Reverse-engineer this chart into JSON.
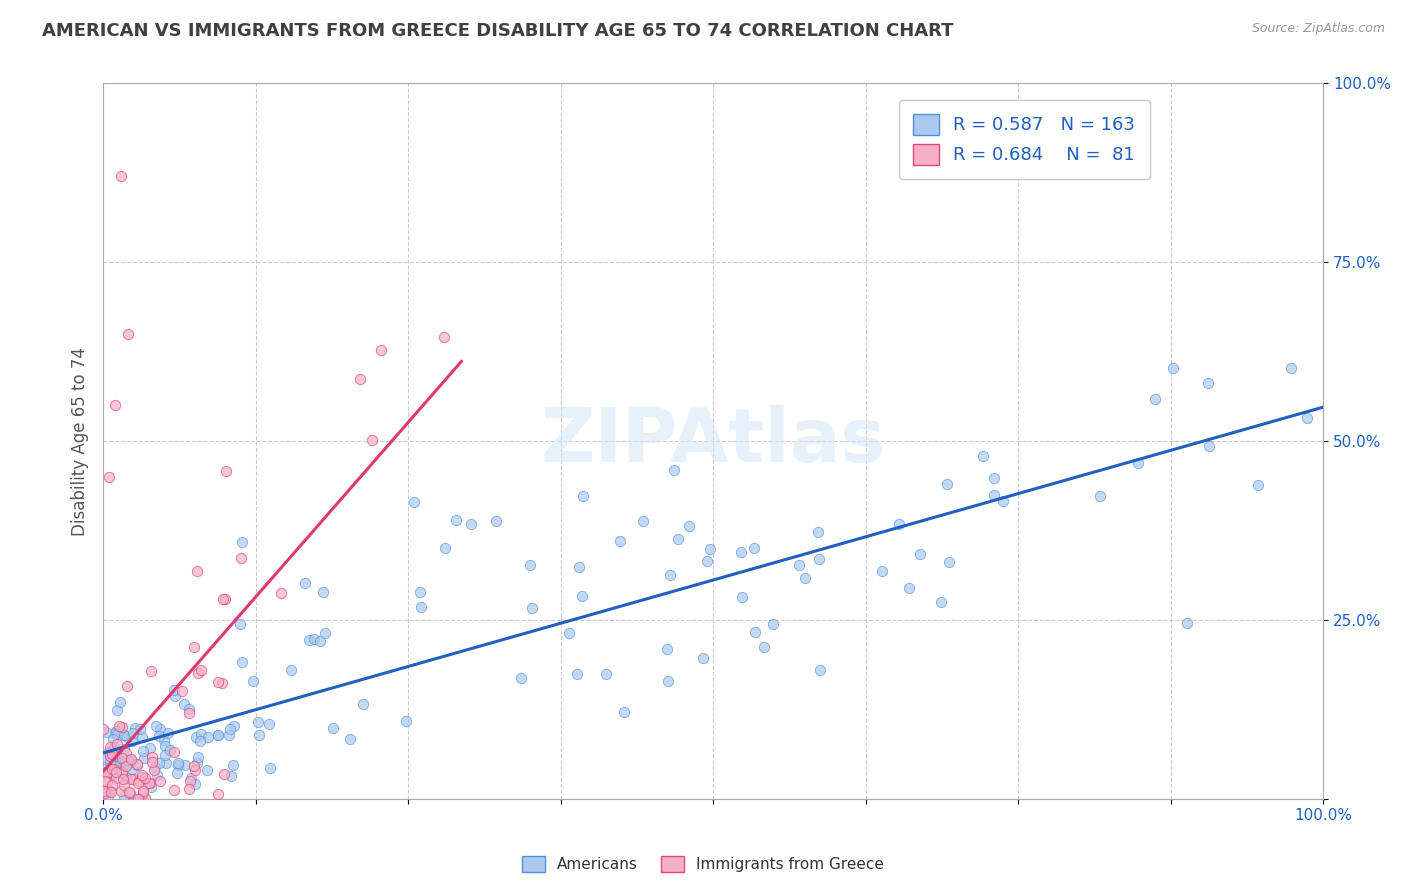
{
  "title": "AMERICAN VS IMMIGRANTS FROM GREECE DISABILITY AGE 65 TO 74 CORRELATION CHART",
  "source": "Source: ZipAtlas.com",
  "ylabel": "Disability Age 65 to 74",
  "background_color": "#ffffff",
  "plot_bg_color": "#ffffff",
  "watermark": "ZIPAtlas",
  "american_color": "#aac8f0",
  "american_edge_color": "#5090d8",
  "greece_color": "#f8b0c8",
  "greece_edge_color": "#e04878",
  "american_line_color": "#2060c0",
  "greece_line_color": "#e03870",
  "R_american": 0.587,
  "N_american": 163,
  "R_greece": 0.684,
  "N_greece": 81,
  "legend_color": "#2060c0",
  "title_color": "#404040",
  "tick_color": "#2060c0",
  "grid_color": "#cccccc",
  "axis_color": "#aaaaaa",
  "dot_size": 55,
  "dot_alpha": 0.7,
  "line_width": 2.2
}
